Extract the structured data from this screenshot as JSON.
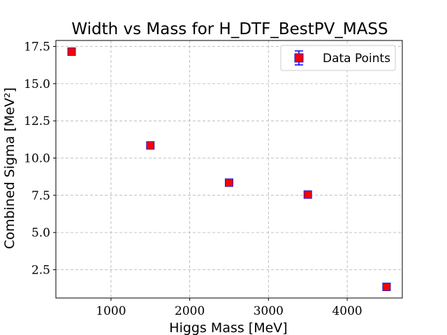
{
  "chart_data": {
    "type": "scatter",
    "title": "Width vs Mass for H_DTF_BestPV_MASS",
    "xlabel": "Higgs Mass [MeV]",
    "ylabel": "Combined Sigma [MeV²]",
    "xlim": [
      300,
      4700
    ],
    "ylim": [
      0.6,
      17.9
    ],
    "x_ticks": [
      1000,
      2000,
      3000,
      4000
    ],
    "x_tick_labels": [
      "1000",
      "2000",
      "3000",
      "4000"
    ],
    "y_ticks": [
      2.5,
      5.0,
      7.5,
      10.0,
      12.5,
      15.0,
      17.5
    ],
    "y_tick_labels": [
      "2.5",
      "5.0",
      "7.5",
      "10.0",
      "12.5",
      "15.0",
      "17.5"
    ],
    "grid": true,
    "legend_position": "top-right",
    "series": [
      {
        "name": "Data Points",
        "marker": "square",
        "color": "#ff0000",
        "edge_color": "#1f1fd6",
        "error_color": "#0000ff",
        "x": [
          500,
          1500,
          2500,
          3500,
          4500
        ],
        "y": [
          17.15,
          10.85,
          8.35,
          7.55,
          1.35
        ],
        "yerr": [
          0.1,
          0.1,
          0.1,
          0.1,
          0.1
        ]
      }
    ]
  }
}
